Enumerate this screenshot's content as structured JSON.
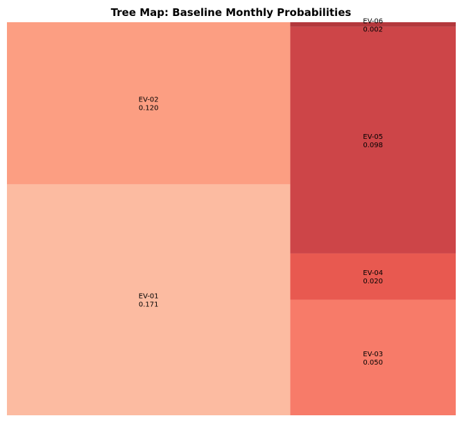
{
  "chart_data": {
    "type": "treemap",
    "title": "Tree Map: Baseline Monthly Probabilities",
    "items": [
      {
        "label": "EV-01",
        "value": 0.171,
        "value_text": "0.171",
        "color": "#fcbba1"
      },
      {
        "label": "EV-02",
        "value": 0.12,
        "value_text": "0.120",
        "color": "#fc9e82"
      },
      {
        "label": "EV-03",
        "value": 0.05,
        "value_text": "0.050",
        "color": "#f77b69"
      },
      {
        "label": "EV-04",
        "value": 0.02,
        "value_text": "0.020",
        "color": "#e85950"
      },
      {
        "label": "EV-05",
        "value": 0.098,
        "value_text": "0.098",
        "color": "#cd4548"
      },
      {
        "label": "EV-06",
        "value": 0.002,
        "value_text": "0.002",
        "color": "#b3383c"
      }
    ]
  }
}
